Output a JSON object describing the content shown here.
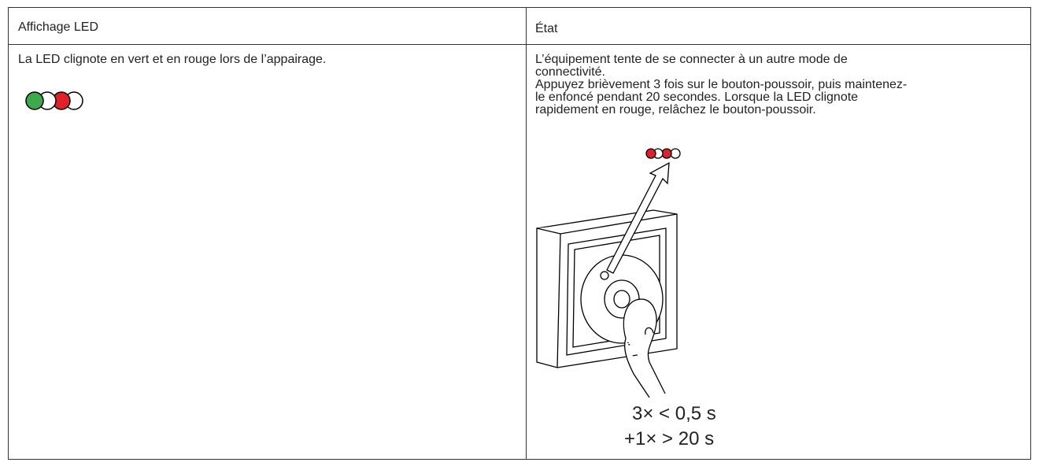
{
  "table": {
    "headers": [
      "Affichage LED",
      "État"
    ],
    "rows": [
      [
        "La LED clignote en vert et en rouge lors de l’appairage.",
        {
          "lines": [
            "L’équipement tente de se connecter à un autre mode de",
            "connectivité.",
            "Appuyez brièvement 3 fois sur le bouton-poussoir, puis maintenez-",
            "le enfoncé pendant 20 secondes. Lorsque la LED clignote",
            "rapidement en rouge, relâchez le bouton-poussoir."
          ],
          "caption": [
            "3× < 0,5 s",
            "+1× > 20 s"
          ]
        }
      ]
    ]
  }
}
